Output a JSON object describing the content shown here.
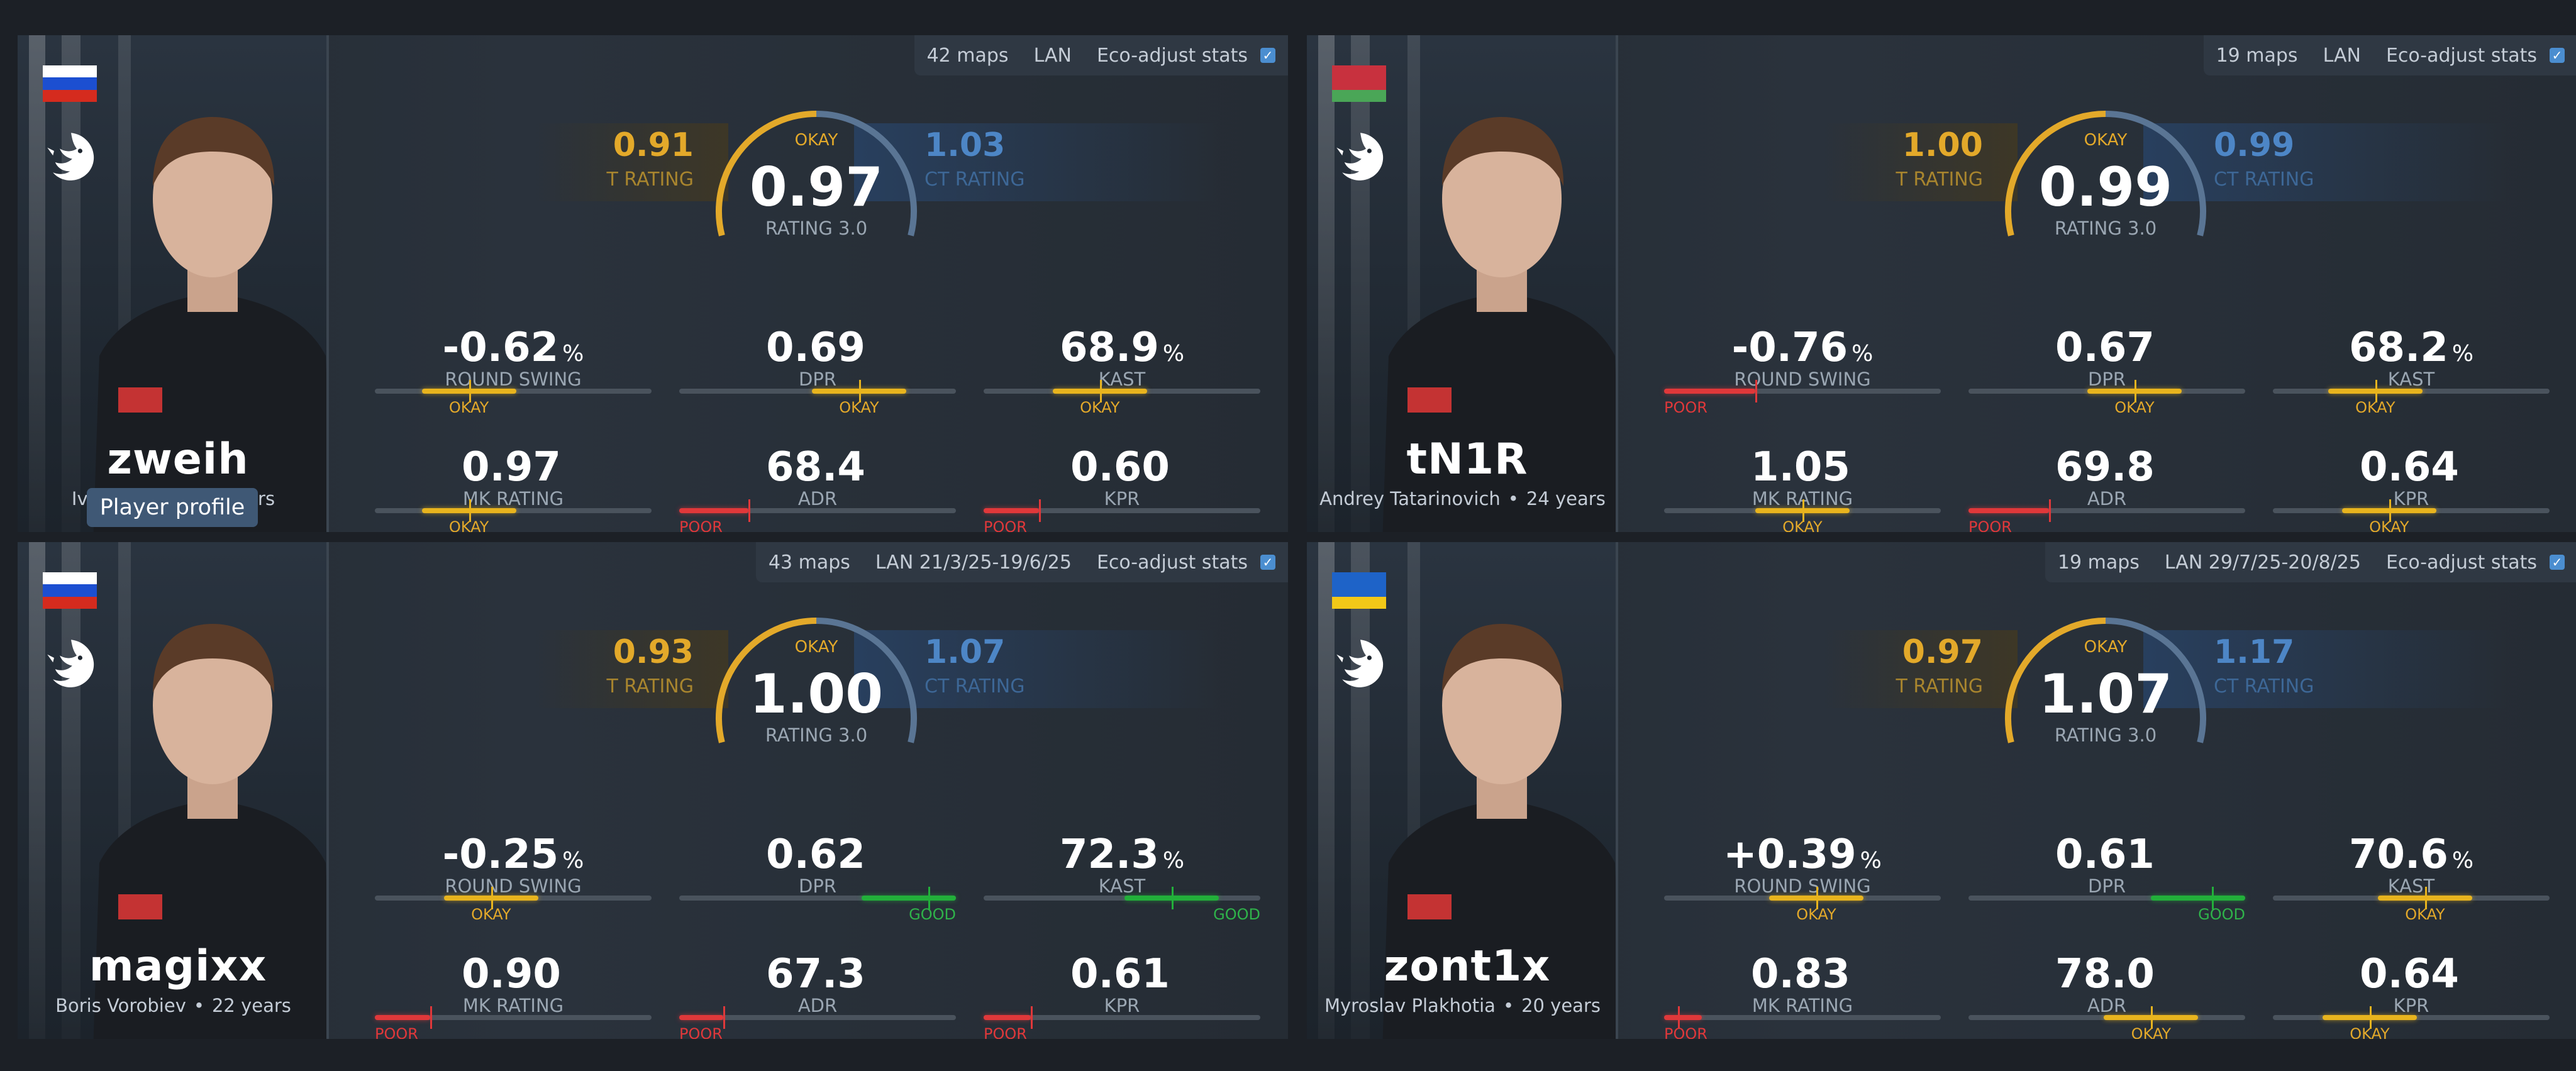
{
  "cards": [
    {
      "nickname": "zweih",
      "real_name": "Ivan Gogin",
      "age": "18 years",
      "flag": [
        "#ffffff",
        "#1c4fd1",
        "#d52b1e"
      ],
      "profile_button": "Player profile",
      "maps": "42 maps",
      "event": "LAN",
      "eco_label": "Eco-adjust stats",
      "t_rating": "0.91",
      "t_label": "T RATING",
      "ct_rating": "1.03",
      "ct_label": "CT RATING",
      "rating": "0.97",
      "rating_label": "RATING 3.0",
      "rating_verdict": "OKAY",
      "rating_level": 0.5,
      "stats": [
        {
          "value": "-0.62",
          "unit": "%",
          "label": "ROUND SWING",
          "verdict": "OKAY",
          "level": 0.34,
          "color": "yellow"
        },
        {
          "value": "0.69",
          "unit": "",
          "label": "DPR",
          "verdict": "OKAY",
          "level": 0.65,
          "color": "yellow"
        },
        {
          "value": "68.9",
          "unit": "%",
          "label": "KAST",
          "verdict": "OKAY",
          "level": 0.42,
          "color": "yellow"
        },
        {
          "value": "0.97",
          "unit": "",
          "label": "MK RATING",
          "verdict": "OKAY",
          "level": 0.34,
          "color": "yellow"
        },
        {
          "value": "68.4",
          "unit": "",
          "label": "ADR",
          "verdict": "POOR",
          "level": 0.25,
          "color": "red"
        },
        {
          "value": "0.60",
          "unit": "",
          "label": "KPR",
          "verdict": "POOR",
          "level": 0.2,
          "color": "red"
        }
      ]
    },
    {
      "nickname": "tN1R",
      "real_name": "Andrey Tatarinovich",
      "age": "24 years",
      "flag": [
        "#c8313e",
        "#c8313e",
        "#4aa657"
      ],
      "maps": "19 maps",
      "event": "LAN",
      "eco_label": "Eco-adjust stats",
      "t_rating": "1.00",
      "t_label": "T RATING",
      "ct_rating": "0.99",
      "ct_label": "CT RATING",
      "rating": "0.99",
      "rating_label": "RATING 3.0",
      "rating_verdict": "OKAY",
      "rating_level": 0.5,
      "stats": [
        {
          "value": "-0.76",
          "unit": "%",
          "label": "ROUND SWING",
          "verdict": "POOR",
          "level": 0.33,
          "color": "red"
        },
        {
          "value": "0.67",
          "unit": "",
          "label": "DPR",
          "verdict": "OKAY",
          "level": 0.6,
          "color": "yellow"
        },
        {
          "value": "68.2",
          "unit": "%",
          "label": "KAST",
          "verdict": "OKAY",
          "level": 0.37,
          "color": "yellow"
        },
        {
          "value": "1.05",
          "unit": "",
          "label": "MK RATING",
          "verdict": "OKAY",
          "level": 0.5,
          "color": "yellow"
        },
        {
          "value": "69.8",
          "unit": "",
          "label": "ADR",
          "verdict": "POOR",
          "level": 0.29,
          "color": "red"
        },
        {
          "value": "0.64",
          "unit": "",
          "label": "KPR",
          "verdict": "OKAY",
          "level": 0.42,
          "color": "yellow"
        }
      ]
    },
    {
      "nickname": "magixx",
      "real_name": "Boris Vorobiev",
      "age": "22 years",
      "flag": [
        "#ffffff",
        "#1c4fd1",
        "#d52b1e"
      ],
      "maps": "43 maps",
      "event": "LAN 21/3/25-19/6/25",
      "eco_label": "Eco-adjust stats",
      "t_rating": "0.93",
      "t_label": "T RATING",
      "ct_rating": "1.07",
      "ct_label": "CT RATING",
      "rating": "1.00",
      "rating_label": "RATING 3.0",
      "rating_verdict": "OKAY",
      "rating_level": 0.5,
      "stats": [
        {
          "value": "-0.25",
          "unit": "%",
          "label": "ROUND SWING",
          "verdict": "OKAY",
          "level": 0.42,
          "color": "yellow"
        },
        {
          "value": "0.62",
          "unit": "",
          "label": "DPR",
          "verdict": "GOOD",
          "level": 0.9,
          "color": "green"
        },
        {
          "value": "72.3",
          "unit": "%",
          "label": "KAST",
          "verdict": "GOOD",
          "level": 0.68,
          "color": "green"
        },
        {
          "value": "0.90",
          "unit": "",
          "label": "MK RATING",
          "verdict": "POOR",
          "level": 0.2,
          "color": "red"
        },
        {
          "value": "67.3",
          "unit": "",
          "label": "ADR",
          "verdict": "POOR",
          "level": 0.16,
          "color": "red"
        },
        {
          "value": "0.61",
          "unit": "",
          "label": "KPR",
          "verdict": "POOR",
          "level": 0.17,
          "color": "red"
        }
      ]
    },
    {
      "nickname": "zont1x",
      "real_name": "Myroslav Plakhotia",
      "age": "20 years",
      "flag": [
        "#1e63c8",
        "#1e63c8",
        "#f2c818"
      ],
      "maps": "19 maps",
      "event": "LAN 29/7/25-20/8/25",
      "eco_label": "Eco-adjust stats",
      "t_rating": "0.97",
      "t_label": "T RATING",
      "ct_rating": "1.17",
      "ct_label": "CT RATING",
      "rating": "1.07",
      "rating_label": "RATING 3.0",
      "rating_verdict": "OKAY",
      "rating_level": 0.5,
      "stats": [
        {
          "value": "+0.39",
          "unit": "%",
          "label": "ROUND SWING",
          "verdict": "OKAY",
          "level": 0.55,
          "color": "yellow"
        },
        {
          "value": "0.61",
          "unit": "",
          "label": "DPR",
          "verdict": "GOOD",
          "level": 0.88,
          "color": "green"
        },
        {
          "value": "70.6",
          "unit": "%",
          "label": "KAST",
          "verdict": "OKAY",
          "level": 0.55,
          "color": "yellow"
        },
        {
          "value": "0.83",
          "unit": "",
          "label": "MK RATING",
          "verdict": "POOR",
          "level": 0.05,
          "color": "red"
        },
        {
          "value": "78.0",
          "unit": "",
          "label": "ADR",
          "verdict": "OKAY",
          "level": 0.66,
          "color": "yellow"
        },
        {
          "value": "0.64",
          "unit": "",
          "label": "KPR",
          "verdict": "OKAY",
          "level": 0.35,
          "color": "yellow"
        }
      ]
    }
  ]
}
